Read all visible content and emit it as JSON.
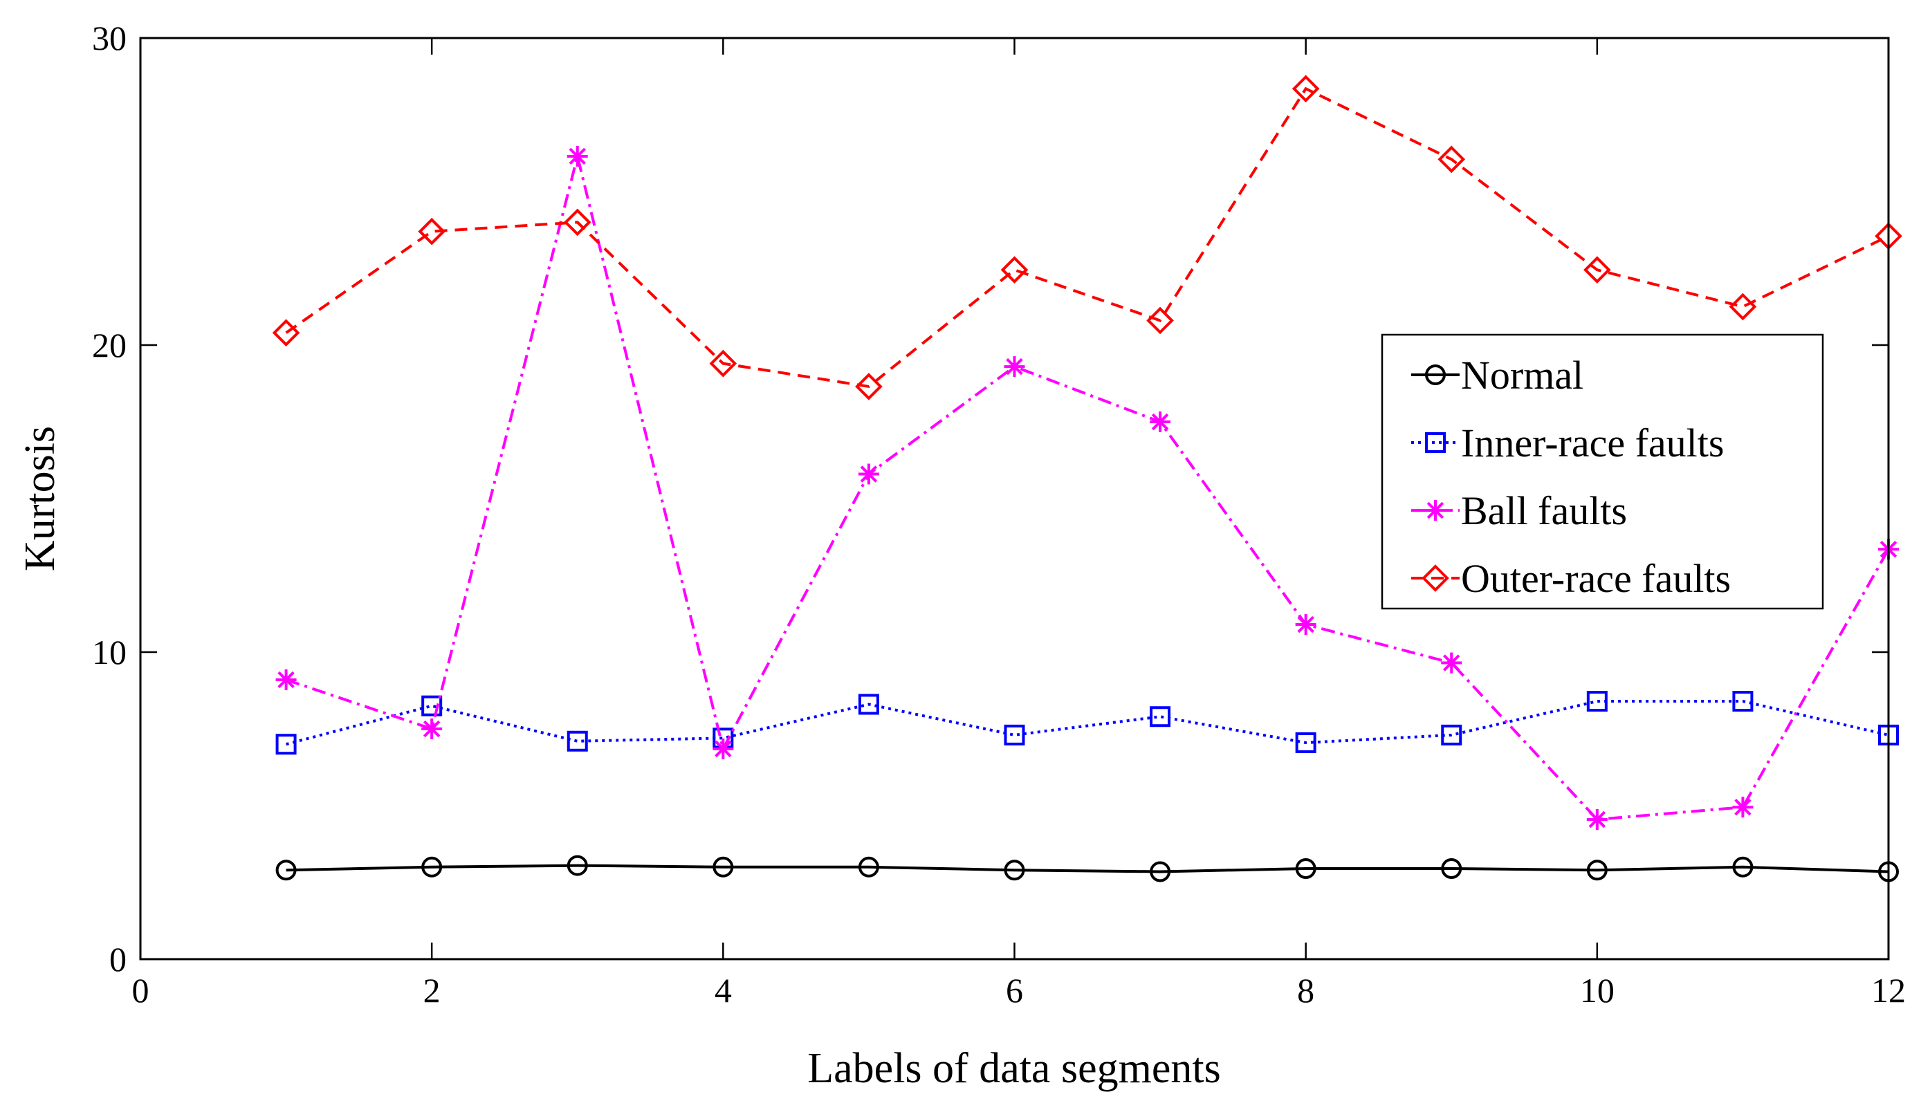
{
  "chart_data": {
    "type": "line",
    "title": "",
    "xlabel": "Labels of data segments",
    "ylabel": "Kurtosis",
    "xlim": [
      0,
      12
    ],
    "ylim": [
      0,
      30
    ],
    "xticks": [
      0,
      2,
      4,
      6,
      8,
      10,
      12
    ],
    "yticks": [
      0,
      10,
      20,
      30
    ],
    "grid": false,
    "legend_position": "right",
    "x": [
      1,
      2,
      3,
      4,
      5,
      6,
      7,
      8,
      9,
      10,
      11,
      12
    ],
    "series": [
      {
        "name": "Normal",
        "color": "#000000",
        "marker": "circle",
        "line_style": "solid",
        "values": [
          2.9,
          3.0,
          3.05,
          3.0,
          3.0,
          2.9,
          2.85,
          2.95,
          2.95,
          2.9,
          3.0,
          2.85
        ]
      },
      {
        "name": "Inner-race faults",
        "color": "#0000ff",
        "marker": "square",
        "line_style": "dotted",
        "values": [
          7.0,
          8.25,
          7.1,
          7.2,
          8.3,
          7.3,
          7.9,
          7.05,
          7.3,
          8.4,
          8.4,
          7.3
        ]
      },
      {
        "name": "Ball faults",
        "color": "#ff00ff",
        "marker": "asterisk",
        "line_style": "dashdot",
        "values": [
          9.1,
          7.5,
          26.15,
          6.85,
          15.8,
          19.3,
          17.5,
          10.9,
          9.65,
          4.55,
          4.95,
          13.35
        ]
      },
      {
        "name": "Outer-race faults",
        "color": "#ff0000",
        "marker": "diamond",
        "line_style": "dashed",
        "values": [
          20.4,
          23.7,
          24.0,
          19.4,
          18.65,
          22.45,
          20.8,
          28.35,
          26.05,
          22.45,
          21.25,
          23.55
        ]
      }
    ]
  }
}
